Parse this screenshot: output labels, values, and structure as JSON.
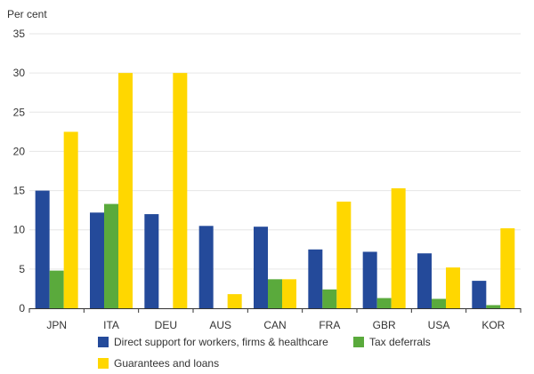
{
  "chart_data": {
    "type": "bar",
    "ylabel": "Per cent",
    "ylim": [
      0,
      35
    ],
    "yticks": [
      0,
      5,
      10,
      15,
      20,
      25,
      30,
      35
    ],
    "grid": true,
    "legend_position": "bottom",
    "categories": [
      "JPN",
      "ITA",
      "DEU",
      "AUS",
      "CAN",
      "FRA",
      "GBR",
      "USA",
      "KOR"
    ],
    "series": [
      {
        "name": "Direct support for workers, firms & healthcare",
        "color": "#244a9a",
        "values": [
          15.0,
          12.2,
          12.0,
          10.5,
          10.4,
          7.5,
          7.2,
          7.0,
          3.5
        ]
      },
      {
        "name": "Tax deferrals",
        "color": "#5aaa3c",
        "values": [
          4.8,
          13.3,
          0,
          0,
          3.7,
          2.4,
          1.3,
          1.2,
          0.4
        ]
      },
      {
        "name": "Guarantees and loans",
        "color": "#ffd700",
        "values": [
          22.5,
          30.0,
          30.0,
          1.8,
          3.7,
          13.6,
          15.3,
          5.2,
          10.2
        ]
      }
    ]
  }
}
